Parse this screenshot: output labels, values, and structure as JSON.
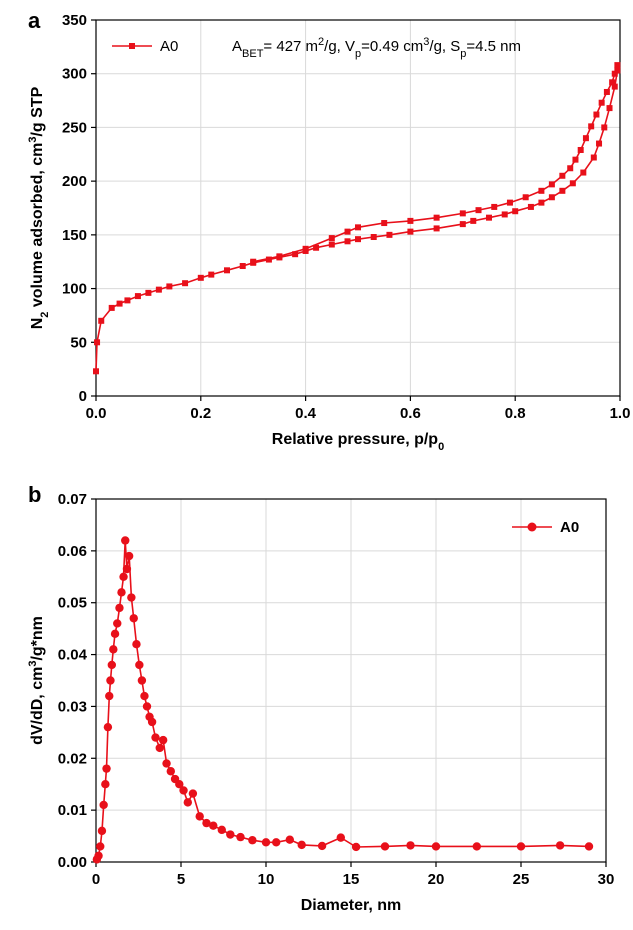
{
  "chart_data": [
    {
      "type": "line",
      "panel_label": "a",
      "xlabel": "Relative pressure, p/p",
      "xlabel_sub": "0",
      "ylabel_parts": [
        "N",
        "2",
        " volume adsorbed, cm",
        "3",
        "/g STP"
      ],
      "xlim": [
        0,
        1.0
      ],
      "ylim": [
        0,
        350
      ],
      "xticks": [
        "0.0",
        "0.2",
        "0.4",
        "0.6",
        "0.8",
        "1.0"
      ],
      "yticks": [
        "0",
        "50",
        "100",
        "150",
        "200",
        "250",
        "300",
        "350"
      ],
      "grid": true,
      "legend_position": "top-left",
      "annotation": "A_BET= 427 m²/g, V_p=0.49 cm³/g, S_p=4.5 nm",
      "annotation_parts": [
        {
          "t": "A",
          "s": "n"
        },
        {
          "t": "BET",
          "s": "sub"
        },
        {
          "t": "= 427 m",
          "s": "n"
        },
        {
          "t": "2",
          "s": "sup"
        },
        {
          "t": "/g, V",
          "s": "n"
        },
        {
          "t": "p",
          "s": "sub"
        },
        {
          "t": "=0.49 cm",
          "s": "n"
        },
        {
          "t": "3",
          "s": "sup"
        },
        {
          "t": "/g, S",
          "s": "n"
        },
        {
          "t": "p",
          "s": "sub"
        },
        {
          "t": "=4.5 nm",
          "s": "n"
        }
      ],
      "series": [
        {
          "name": "A0",
          "color": "#e8101a",
          "marker": "square",
          "adsorption": [
            [
              0.0,
              23
            ],
            [
              0.002,
              50
            ],
            [
              0.01,
              70
            ],
            [
              0.03,
              82
            ],
            [
              0.045,
              86
            ],
            [
              0.06,
              89
            ],
            [
              0.08,
              93
            ],
            [
              0.1,
              96
            ],
            [
              0.12,
              99
            ],
            [
              0.14,
              102
            ],
            [
              0.17,
              105
            ],
            [
              0.2,
              110
            ],
            [
              0.22,
              113
            ],
            [
              0.25,
              117
            ],
            [
              0.28,
              121
            ],
            [
              0.3,
              124
            ],
            [
              0.33,
              127
            ],
            [
              0.35,
              129
            ],
            [
              0.38,
              132
            ],
            [
              0.4,
              135
            ],
            [
              0.42,
              138
            ],
            [
              0.45,
              141
            ],
            [
              0.48,
              144
            ],
            [
              0.5,
              146
            ],
            [
              0.53,
              148
            ],
            [
              0.56,
              150
            ],
            [
              0.6,
              153
            ],
            [
              0.65,
              156
            ],
            [
              0.7,
              160
            ],
            [
              0.72,
              163
            ],
            [
              0.75,
              166
            ],
            [
              0.78,
              169
            ],
            [
              0.8,
              172
            ],
            [
              0.83,
              176
            ],
            [
              0.85,
              180
            ],
            [
              0.87,
              185
            ],
            [
              0.89,
              191
            ],
            [
              0.91,
              198
            ],
            [
              0.93,
              208
            ],
            [
              0.95,
              222
            ],
            [
              0.96,
              235
            ],
            [
              0.97,
              250
            ],
            [
              0.98,
              268
            ],
            [
              0.99,
              288
            ],
            [
              0.995,
              303
            ]
          ],
          "desorption": [
            [
              0.995,
              308
            ],
            [
              0.99,
              300
            ],
            [
              0.985,
              292
            ],
            [
              0.975,
              283
            ],
            [
              0.965,
              273
            ],
            [
              0.955,
              262
            ],
            [
              0.945,
              251
            ],
            [
              0.935,
              240
            ],
            [
              0.925,
              229
            ],
            [
              0.915,
              220
            ],
            [
              0.905,
              212
            ],
            [
              0.89,
              205
            ],
            [
              0.87,
              197
            ],
            [
              0.85,
              191
            ],
            [
              0.82,
              185
            ],
            [
              0.79,
              180
            ],
            [
              0.76,
              176
            ],
            [
              0.73,
              173
            ],
            [
              0.7,
              170
            ],
            [
              0.65,
              166
            ],
            [
              0.6,
              163
            ],
            [
              0.55,
              161
            ],
            [
              0.5,
              157
            ],
            [
              0.48,
              153
            ],
            [
              0.45,
              147
            ],
            [
              0.4,
              137
            ],
            [
              0.35,
              130
            ],
            [
              0.3,
              125
            ]
          ]
        }
      ]
    },
    {
      "type": "line",
      "panel_label": "b",
      "xlabel": "Diameter, nm",
      "ylabel_parts": [
        "dV/dD, cm",
        "3",
        "/g*nm"
      ],
      "xlim": [
        0,
        30
      ],
      "ylim": [
        0,
        0.07
      ],
      "xticks": [
        "0",
        "5",
        "10",
        "15",
        "20",
        "25",
        "30"
      ],
      "yticks": [
        "0.00",
        "0.01",
        "0.02",
        "0.03",
        "0.04",
        "0.05",
        "0.06",
        "0.07"
      ],
      "grid": true,
      "legend_position": "top-right",
      "series": [
        {
          "name": "A0",
          "color": "#e8101a",
          "marker": "circle",
          "points": [
            [
              0.05,
              0.0005
            ],
            [
              0.15,
              0.0012
            ],
            [
              0.25,
              0.003
            ],
            [
              0.35,
              0.006
            ],
            [
              0.45,
              0.011
            ],
            [
              0.55,
              0.015
            ],
            [
              0.62,
              0.018
            ],
            [
              0.7,
              0.026
            ],
            [
              0.78,
              0.032
            ],
            [
              0.85,
              0.035
            ],
            [
              0.93,
              0.038
            ],
            [
              1.02,
              0.041
            ],
            [
              1.12,
              0.044
            ],
            [
              1.25,
              0.046
            ],
            [
              1.38,
              0.049
            ],
            [
              1.5,
              0.052
            ],
            [
              1.62,
              0.055
            ],
            [
              1.72,
              0.062
            ],
            [
              1.82,
              0.0565
            ],
            [
              1.95,
              0.059
            ],
            [
              2.08,
              0.051
            ],
            [
              2.22,
              0.047
            ],
            [
              2.38,
              0.042
            ],
            [
              2.55,
              0.038
            ],
            [
              2.7,
              0.035
            ],
            [
              2.85,
              0.032
            ],
            [
              3.0,
              0.03
            ],
            [
              3.15,
              0.028
            ],
            [
              3.3,
              0.027
            ],
            [
              3.5,
              0.024
            ],
            [
              3.75,
              0.022
            ],
            [
              3.95,
              0.0235
            ],
            [
              4.15,
              0.019
            ],
            [
              4.4,
              0.0175
            ],
            [
              4.65,
              0.016
            ],
            [
              4.9,
              0.015
            ],
            [
              5.15,
              0.0138
            ],
            [
              5.4,
              0.0115
            ],
            [
              5.7,
              0.0132
            ],
            [
              6.1,
              0.0088
            ],
            [
              6.5,
              0.0075
            ],
            [
              6.9,
              0.007
            ],
            [
              7.4,
              0.0062
            ],
            [
              7.9,
              0.0053
            ],
            [
              8.5,
              0.0048
            ],
            [
              9.2,
              0.0042
            ],
            [
              10.0,
              0.0038
            ],
            [
              10.6,
              0.0038
            ],
            [
              11.4,
              0.0043
            ],
            [
              12.1,
              0.0033
            ],
            [
              13.3,
              0.0031
            ],
            [
              14.4,
              0.0047
            ],
            [
              15.3,
              0.0029
            ],
            [
              17.0,
              0.003
            ],
            [
              18.5,
              0.0032
            ],
            [
              20.0,
              0.003
            ],
            [
              22.4,
              0.003
            ],
            [
              25.0,
              0.003
            ],
            [
              27.3,
              0.0032
            ],
            [
              29.0,
              0.003
            ]
          ]
        }
      ]
    }
  ]
}
